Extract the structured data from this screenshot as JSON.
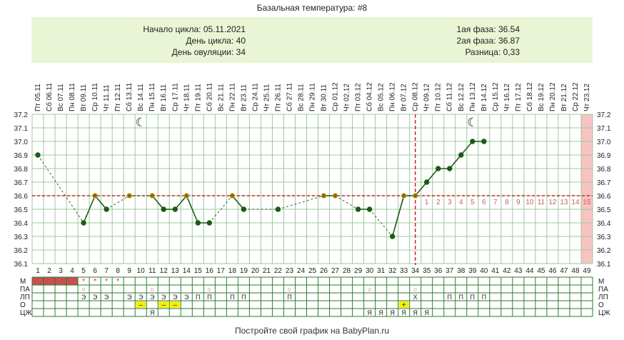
{
  "header": {
    "title": "Базальная температура: #8",
    "left": [
      "Начало цикла: 05.11.2021",
      "День цикла: 40",
      "День овуляции: 34"
    ],
    "right": [
      "1ая фаза: 36.54",
      "2ая фаза: 36.87",
      "Разница: 0,33"
    ]
  },
  "footer": "Постройте свой график на BabyPlan.ru",
  "chart_data": {
    "type": "line",
    "dates": [
      "Пт 05.11",
      "Сб 06.11",
      "Вс 07.11",
      "Пн 08.11",
      "Вт 09.11",
      "Ср 10.11",
      "Чт 11.11",
      "Пт 12.11",
      "Сб 13.11",
      "Вс 14.11",
      "Пн 15.11",
      "Вт 16.11",
      "Ср 17.11",
      "Чт 18.11",
      "Пт 19.11",
      "Сб 20.11",
      "Вс 21.11",
      "Пн 22.11",
      "Вт 23.11",
      "Ср 24.11",
      "Чт 25.11",
      "Пт 26.11",
      "Сб 27.11",
      "Вс 28.11",
      "Пн 29.11",
      "Вт 30.11",
      "Ср 01.12",
      "Чт 02.12",
      "Пт 03.12",
      "Сб 04.12",
      "Вс 05.12",
      "Пн 06.12",
      "Вт 07.12",
      "Ср 08.12",
      "Чт 09.12",
      "Пт 10.12",
      "Сб 11.12",
      "Вс 12.12",
      "Пн 13.12",
      "Вт 14.12",
      "Ср 15.12",
      "Чт 16.12",
      "Пт 17.12",
      "Сб 18.12",
      "Вс 19.12",
      "Пн 20.12",
      "Вт 21.12",
      "Ср 22.12",
      "Чт 23.12"
    ],
    "cycle_days": [
      1,
      2,
      3,
      4,
      5,
      6,
      7,
      8,
      9,
      10,
      11,
      12,
      13,
      14,
      15,
      16,
      17,
      18,
      19,
      20,
      21,
      22,
      23,
      24,
      25,
      26,
      27,
      28,
      29,
      30,
      31,
      32,
      33,
      34,
      35,
      36,
      37,
      38,
      39,
      40,
      41,
      42,
      43,
      44,
      45,
      46,
      47,
      48,
      49
    ],
    "temperatures": [
      36.9,
      null,
      null,
      null,
      36.4,
      36.6,
      36.5,
      null,
      36.6,
      null,
      36.6,
      36.5,
      36.5,
      36.6,
      36.4,
      36.4,
      null,
      36.6,
      36.5,
      null,
      null,
      36.5,
      null,
      null,
      null,
      36.6,
      36.6,
      null,
      36.5,
      36.5,
      null,
      36.3,
      36.6,
      36.6,
      36.7,
      36.8,
      36.8,
      36.9,
      37.0,
      37.0,
      null,
      null,
      null,
      null,
      null,
      null,
      null,
      null,
      null
    ],
    "ylim": [
      36.1,
      37.2
    ],
    "y_ticks": [
      "36.1",
      "36.2",
      "36.3",
      "36.4",
      "36.5",
      "36.6",
      "36.7",
      "36.8",
      "36.9",
      "37.0",
      "37.1",
      "37.2"
    ],
    "coverline": 36.6,
    "ovulation_day": 34,
    "post_ovulation_labels": [
      "1",
      "2",
      "3",
      "4",
      "5",
      "6",
      "7",
      "8",
      "9",
      "10",
      "11",
      "12",
      "13",
      "14",
      "15"
    ],
    "moon_days": [
      10,
      39
    ],
    "highlight_day": 49,
    "grid": true,
    "marker_color": "#1a5c12",
    "line_color": "#1a5c12",
    "coverline_color": "#d42020"
  },
  "symptoms": {
    "labels": [
      "М",
      "ПА",
      "ЛП",
      "О",
      "ЦЖ"
    ],
    "menses_days": [
      1,
      2,
      3,
      4
    ],
    "stars": {
      "days": [
        5,
        6,
        7,
        8
      ],
      "symbol": "*"
    },
    "pa": {
      "symbol": "○",
      "days": [
        5,
        11,
        16,
        23,
        30,
        34
      ]
    },
    "lp": [
      {
        "day": 5,
        "v": "Э"
      },
      {
        "day": 6,
        "v": "Э"
      },
      {
        "day": 7,
        "v": "Э"
      },
      {
        "day": 9,
        "v": "Э"
      },
      {
        "day": 10,
        "v": "Э"
      },
      {
        "day": 11,
        "v": "Э"
      },
      {
        "day": 12,
        "v": "Э"
      },
      {
        "day": 13,
        "v": "Э"
      },
      {
        "day": 14,
        "v": "Э"
      },
      {
        "day": 15,
        "v": "П"
      },
      {
        "day": 16,
        "v": "П"
      },
      {
        "day": 18,
        "v": "П"
      },
      {
        "day": 19,
        "v": "П"
      },
      {
        "day": 23,
        "v": "П"
      },
      {
        "day": 34,
        "v": "Х"
      },
      {
        "day": 37,
        "v": "П"
      },
      {
        "day": 38,
        "v": "П"
      },
      {
        "day": 39,
        "v": "П"
      },
      {
        "day": 40,
        "v": "П"
      }
    ],
    "o": [
      {
        "day": 10,
        "v": "–"
      },
      {
        "day": 12,
        "v": "–"
      },
      {
        "day": 13,
        "v": "–"
      },
      {
        "day": 33,
        "v": "+"
      }
    ],
    "cm": [
      {
        "day": 11,
        "v": "Я"
      },
      {
        "day": 30,
        "v": "Я"
      },
      {
        "day": 31,
        "v": "Я"
      },
      {
        "day": 32,
        "v": "Я"
      },
      {
        "day": 33,
        "v": "Я"
      },
      {
        "day": 34,
        "v": "Я"
      },
      {
        "day": 35,
        "v": "Я"
      }
    ],
    "menses_color": "#c85050",
    "o_highlight_color": "#f5f000"
  }
}
